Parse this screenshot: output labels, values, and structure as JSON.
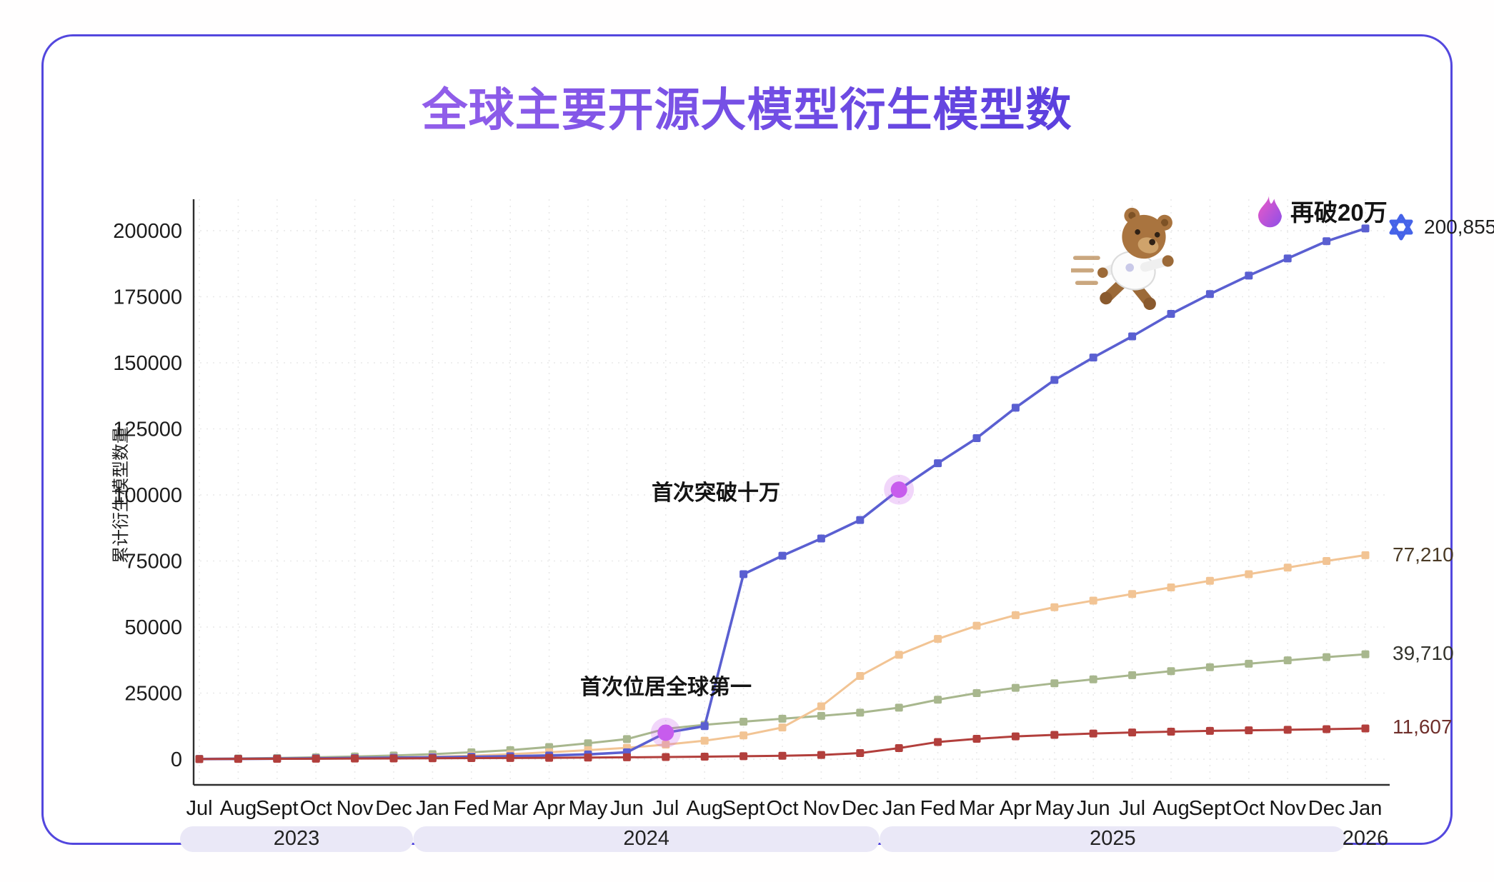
{
  "chart_data": {
    "type": "line",
    "title": "全球主要开源大模型衍生模型数",
    "ylabel": "累计衍生模型数量",
    "xlabel": "",
    "ylim": [
      0,
      200000
    ],
    "y_ticks": [
      0,
      25000,
      50000,
      75000,
      100000,
      125000,
      150000,
      175000,
      200000
    ],
    "grid": true,
    "legend": "none",
    "x_labels": [
      "Jul",
      "Aug",
      "Sept",
      "Oct",
      "Nov",
      "Dec",
      "Jan",
      "Fed",
      "Mar",
      "Apr",
      "May",
      "Jun",
      "Jul",
      "Aug",
      "Sept",
      "Oct",
      "Nov",
      "Dec",
      "Jan",
      "Fed",
      "Mar",
      "Apr",
      "May",
      "Jun",
      "Jul",
      "Aug",
      "Sept",
      "Oct",
      "Nov",
      "Dec",
      "Jan"
    ],
    "year_bands": [
      {
        "label": "2023",
        "start": 0,
        "end": 5,
        "pill": true
      },
      {
        "label": "2024",
        "start": 6,
        "end": 17,
        "pill": true
      },
      {
        "label": "2025",
        "start": 18,
        "end": 29,
        "pill": true
      },
      {
        "label": "2026",
        "start": 30,
        "end": 30,
        "pill": false
      }
    ],
    "series": [
      {
        "name": "green",
        "color": "#a8b78e",
        "final_label": "39,710",
        "final_value": 39710,
        "values": [
          120,
          260,
          450,
          700,
          1000,
          1400,
          1900,
          2600,
          3400,
          4600,
          6000,
          7600,
          11500,
          13000,
          14200,
          15300,
          16400,
          17600,
          19500,
          22500,
          25000,
          27000,
          28700,
          30200,
          31800,
          33300,
          34800,
          36100,
          37400,
          38600,
          39710
        ]
      },
      {
        "name": "orange",
        "color": "#f2c494",
        "final_label": "77,210",
        "final_value": 77210,
        "values": [
          40,
          90,
          160,
          260,
          400,
          600,
          900,
          1300,
          1900,
          2600,
          3400,
          4300,
          5500,
          7000,
          9000,
          12000,
          20000,
          31500,
          39500,
          45500,
          50500,
          54500,
          57500,
          60000,
          62500,
          65000,
          67500,
          70000,
          72500,
          75000,
          77210
        ]
      },
      {
        "name": "blue",
        "color": "#5a5fd1",
        "final_label": "200,855",
        "final_value": 200855,
        "logo": "qwen-logo",
        "values": [
          60,
          120,
          200,
          300,
          420,
          550,
          700,
          900,
          1100,
          1400,
          1800,
          2600,
          10000,
          12500,
          70000,
          77000,
          83500,
          90500,
          102000,
          112000,
          121500,
          133000,
          143500,
          152000,
          160000,
          168500,
          176000,
          183000,
          189500,
          196000,
          200855
        ]
      },
      {
        "name": "red",
        "color": "#b23f3c",
        "final_label": "11,607",
        "final_value": 11607,
        "values": [
          50,
          90,
          130,
          180,
          230,
          280,
          330,
          390,
          450,
          520,
          600,
          700,
          820,
          950,
          1100,
          1300,
          1600,
          2300,
          4200,
          6500,
          7700,
          8600,
          9200,
          9700,
          10100,
          10400,
          10700,
          10900,
          11100,
          11350,
          11607
        ]
      }
    ],
    "annotations": [
      {
        "id": "first-global-no1",
        "text": "首次位居全球第一",
        "series_index": 2,
        "point_index": 12
      },
      {
        "id": "first-break-100k",
        "text": "首次突破十万",
        "series_index": 2,
        "point_index": 18
      },
      {
        "id": "break-200k-again",
        "text": "再破20万",
        "icon": "flame-icon"
      }
    ],
    "mascot": "running-bear",
    "colors": {
      "card_border": "#5347de",
      "title_gradient_start": "#b671ef",
      "title_gradient_end": "#3d2ed6",
      "grid": "#e9e9e9",
      "axis": "#2e2e2e",
      "year_pill_bg": "#eae8f7",
      "highlight_dot": "#c75ced",
      "highlight_halo": "rgba(199,92,237,0.25)"
    }
  }
}
